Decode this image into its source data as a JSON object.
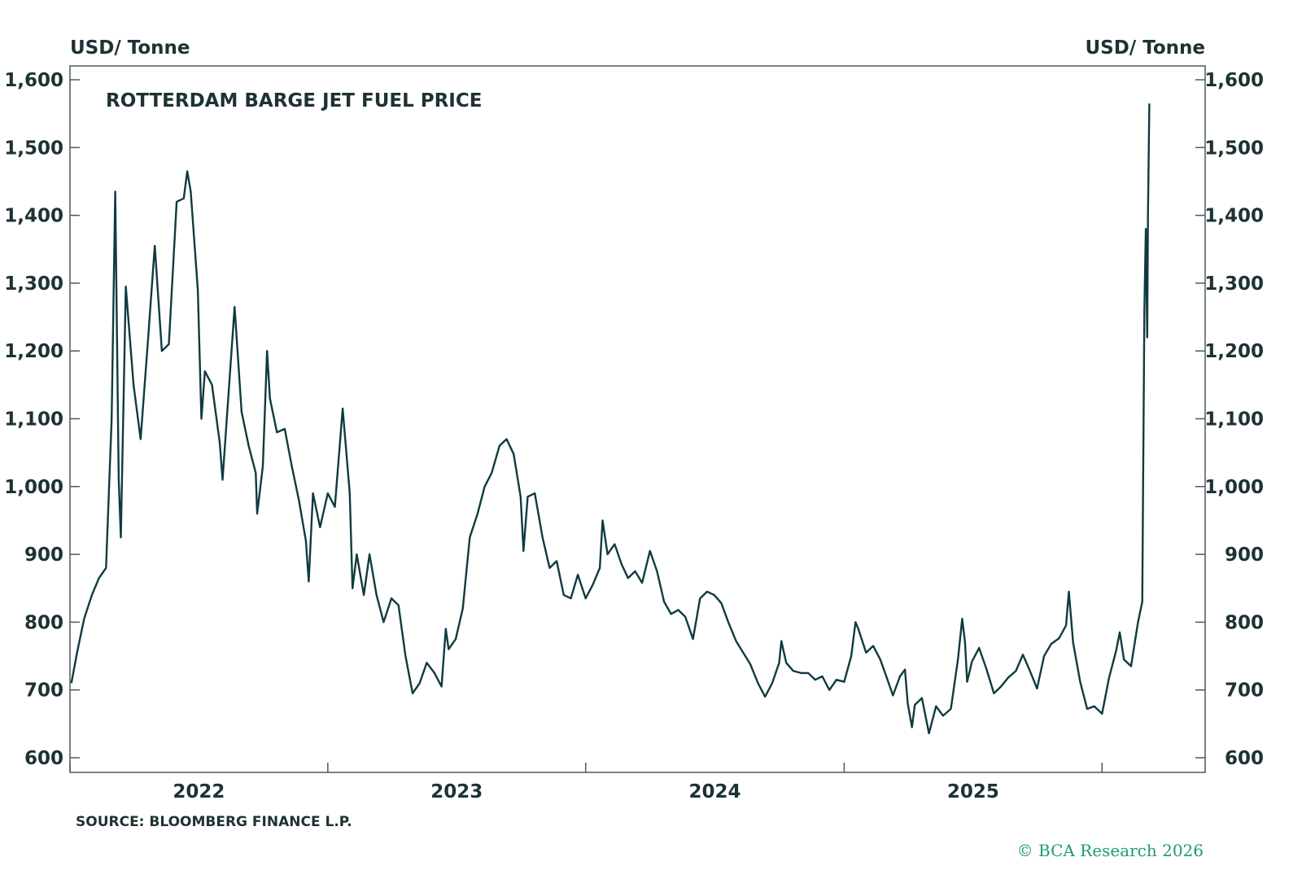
{
  "chart_data": {
    "type": "line",
    "title": "ROTTERDAM BARGE JET FUEL PRICE",
    "ylabel_left": "USD/ Tonne",
    "ylabel_right": "USD/ Tonne",
    "xlabel": "",
    "ylim": [
      600,
      1600
    ],
    "yticks": [
      600,
      700,
      800,
      900,
      1000,
      1100,
      1200,
      1300,
      1400,
      1500,
      1600
    ],
    "ytick_labels": [
      "600",
      "700",
      "800",
      "900",
      "1,000",
      "1,100",
      "1,200",
      "1,300",
      "1,400",
      "1,500",
      "1,600"
    ],
    "xlim": [
      "2022-01-01",
      "2026-05-27"
    ],
    "xtick_labels": [
      "2022",
      "2023",
      "2024",
      "2025"
    ],
    "grid": false,
    "line_color": "#0f3b3f",
    "series": [
      {
        "points": [
          [
            "2022-01-03",
            710
          ],
          [
            "2022-01-11",
            755
          ],
          [
            "2022-01-21",
            805
          ],
          [
            "2022-02-01",
            840
          ],
          [
            "2022-02-11",
            865
          ],
          [
            "2022-02-21",
            880
          ],
          [
            "2022-03-01",
            1100
          ],
          [
            "2022-03-06",
            1435
          ],
          [
            "2022-03-11",
            1010
          ],
          [
            "2022-03-14",
            925
          ],
          [
            "2022-03-21",
            1295
          ],
          [
            "2022-04-01",
            1150
          ],
          [
            "2022-04-11",
            1070
          ],
          [
            "2022-04-21",
            1210
          ],
          [
            "2022-05-01",
            1355
          ],
          [
            "2022-05-11",
            1200
          ],
          [
            "2022-05-21",
            1210
          ],
          [
            "2022-06-01",
            1420
          ],
          [
            "2022-06-11",
            1425
          ],
          [
            "2022-06-16",
            1465
          ],
          [
            "2022-06-21",
            1435
          ],
          [
            "2022-07-01",
            1290
          ],
          [
            "2022-07-06",
            1100
          ],
          [
            "2022-07-11",
            1170
          ],
          [
            "2022-07-21",
            1150
          ],
          [
            "2022-08-01",
            1065
          ],
          [
            "2022-08-05",
            1010
          ],
          [
            "2022-08-11",
            1100
          ],
          [
            "2022-08-22",
            1265
          ],
          [
            "2022-09-01",
            1110
          ],
          [
            "2022-09-11",
            1060
          ],
          [
            "2022-09-21",
            1020
          ],
          [
            "2022-09-23",
            960
          ],
          [
            "2022-10-01",
            1030
          ],
          [
            "2022-10-07",
            1200
          ],
          [
            "2022-10-11",
            1130
          ],
          [
            "2022-10-21",
            1080
          ],
          [
            "2022-11-01",
            1085
          ],
          [
            "2022-11-11",
            1030
          ],
          [
            "2022-11-21",
            980
          ],
          [
            "2022-12-01",
            920
          ],
          [
            "2022-12-05",
            860
          ],
          [
            "2022-12-11",
            990
          ],
          [
            "2022-12-21",
            940
          ],
          [
            "2023-01-01",
            990
          ],
          [
            "2023-01-11",
            970
          ],
          [
            "2023-01-22",
            1115
          ],
          [
            "2023-02-01",
            990
          ],
          [
            "2023-02-05",
            850
          ],
          [
            "2023-02-11",
            900
          ],
          [
            "2023-02-21",
            840
          ],
          [
            "2023-03-01",
            900
          ],
          [
            "2023-03-11",
            840
          ],
          [
            "2023-03-21",
            800
          ],
          [
            "2023-04-01",
            835
          ],
          [
            "2023-04-11",
            825
          ],
          [
            "2023-04-21",
            750
          ],
          [
            "2023-05-01",
            695
          ],
          [
            "2023-05-11",
            710
          ],
          [
            "2023-05-21",
            740
          ],
          [
            "2023-06-01",
            725
          ],
          [
            "2023-06-11",
            705
          ],
          [
            "2023-06-17",
            790
          ],
          [
            "2023-06-21",
            760
          ],
          [
            "2023-07-01",
            775
          ],
          [
            "2023-07-11",
            820
          ],
          [
            "2023-07-21",
            925
          ],
          [
            "2023-08-01",
            960
          ],
          [
            "2023-08-11",
            1000
          ],
          [
            "2023-08-21",
            1020
          ],
          [
            "2023-09-01",
            1060
          ],
          [
            "2023-09-11",
            1070
          ],
          [
            "2023-09-21",
            1048
          ],
          [
            "2023-10-01",
            985
          ],
          [
            "2023-10-05",
            905
          ],
          [
            "2023-10-11",
            985
          ],
          [
            "2023-10-21",
            990
          ],
          [
            "2023-11-01",
            925
          ],
          [
            "2023-11-11",
            880
          ],
          [
            "2023-11-21",
            890
          ],
          [
            "2023-12-01",
            840
          ],
          [
            "2023-12-11",
            835
          ],
          [
            "2023-12-21",
            870
          ],
          [
            "2024-01-01",
            835
          ],
          [
            "2024-01-11",
            855
          ],
          [
            "2024-01-21",
            880
          ],
          [
            "2024-01-25",
            950
          ],
          [
            "2024-02-01",
            900
          ],
          [
            "2024-02-11",
            915
          ],
          [
            "2024-02-21",
            885
          ],
          [
            "2024-03-01",
            865
          ],
          [
            "2024-03-11",
            875
          ],
          [
            "2024-03-21",
            858
          ],
          [
            "2024-04-01",
            905
          ],
          [
            "2024-04-11",
            875
          ],
          [
            "2024-04-21",
            830
          ],
          [
            "2024-05-01",
            812
          ],
          [
            "2024-05-11",
            818
          ],
          [
            "2024-05-21",
            808
          ],
          [
            "2024-06-01",
            775
          ],
          [
            "2024-06-11",
            835
          ],
          [
            "2024-06-21",
            845
          ],
          [
            "2024-07-01",
            840
          ],
          [
            "2024-07-11",
            828
          ],
          [
            "2024-07-21",
            800
          ],
          [
            "2024-08-01",
            772
          ],
          [
            "2024-08-11",
            755
          ],
          [
            "2024-08-21",
            738
          ],
          [
            "2024-09-01",
            710
          ],
          [
            "2024-09-11",
            690
          ],
          [
            "2024-09-21",
            710
          ],
          [
            "2024-10-01",
            740
          ],
          [
            "2024-10-04",
            772
          ],
          [
            "2024-10-11",
            740
          ],
          [
            "2024-10-21",
            728
          ],
          [
            "2024-11-01",
            725
          ],
          [
            "2024-11-11",
            725
          ],
          [
            "2024-11-21",
            715
          ],
          [
            "2024-12-01",
            720
          ],
          [
            "2024-12-11",
            700
          ],
          [
            "2024-12-21",
            715
          ],
          [
            "2025-01-01",
            712
          ],
          [
            "2025-01-11",
            750
          ],
          [
            "2025-01-17",
            800
          ],
          [
            "2025-01-21",
            790
          ],
          [
            "2025-02-01",
            755
          ],
          [
            "2025-02-11",
            765
          ],
          [
            "2025-02-21",
            745
          ],
          [
            "2025-03-01",
            722
          ],
          [
            "2025-03-11",
            692
          ],
          [
            "2025-03-21",
            720
          ],
          [
            "2025-03-28",
            730
          ],
          [
            "2025-04-01",
            680
          ],
          [
            "2025-04-07",
            645
          ],
          [
            "2025-04-11",
            678
          ],
          [
            "2025-04-21",
            688
          ],
          [
            "2025-05-01",
            636
          ],
          [
            "2025-05-11",
            676
          ],
          [
            "2025-05-21",
            662
          ],
          [
            "2025-06-01",
            672
          ],
          [
            "2025-06-11",
            745
          ],
          [
            "2025-06-17",
            805
          ],
          [
            "2025-06-21",
            770
          ],
          [
            "2025-06-24",
            712
          ],
          [
            "2025-07-01",
            742
          ],
          [
            "2025-07-11",
            762
          ],
          [
            "2025-07-21",
            732
          ],
          [
            "2025-08-01",
            695
          ],
          [
            "2025-08-11",
            705
          ],
          [
            "2025-08-21",
            718
          ],
          [
            "2025-09-01",
            728
          ],
          [
            "2025-09-11",
            752
          ],
          [
            "2025-09-21",
            728
          ],
          [
            "2025-10-01",
            702
          ],
          [
            "2025-10-11",
            750
          ],
          [
            "2025-10-21",
            768
          ],
          [
            "2025-11-01",
            776
          ],
          [
            "2025-11-11",
            795
          ],
          [
            "2025-11-15",
            845
          ],
          [
            "2025-11-21",
            770
          ],
          [
            "2025-12-01",
            712
          ],
          [
            "2025-12-11",
            672
          ],
          [
            "2025-12-21",
            676
          ],
          [
            "2026-01-01",
            665
          ],
          [
            "2026-01-11",
            718
          ],
          [
            "2026-01-21",
            758
          ],
          [
            "2026-01-26",
            785
          ],
          [
            "2026-02-01",
            745
          ],
          [
            "2026-02-11",
            735
          ],
          [
            "2026-02-21",
            800
          ],
          [
            "2026-02-27",
            830
          ],
          [
            "2026-03-02",
            1260
          ],
          [
            "2026-03-04",
            1380
          ],
          [
            "2026-03-06",
            1220
          ],
          [
            "2026-03-07",
            1400
          ],
          [
            "2026-03-09",
            1565
          ]
        ]
      }
    ]
  },
  "footer": {
    "source": "SOURCE: BLOOMBERG FINANCE L.P.",
    "logo_text": "© BCA Research 2026"
  }
}
